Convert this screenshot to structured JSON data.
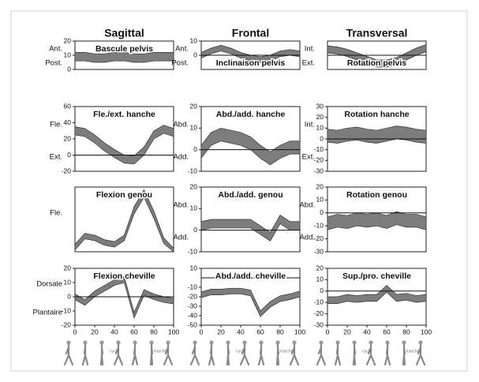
{
  "columns": [
    "Sagittal",
    "Frontal",
    "Transversal"
  ],
  "gait_labels": [
    "cycle",
    "marche"
  ],
  "chart_data": [
    {
      "type": "band",
      "title": "Bascule pelvis",
      "y_labels": [
        "Ant.",
        "Post."
      ],
      "x": [
        0,
        10,
        20,
        30,
        40,
        50,
        60,
        70,
        80,
        90,
        100
      ],
      "xlim": [
        0,
        100
      ],
      "ylim": [
        0,
        20
      ],
      "yticks": [
        0,
        10,
        20
      ],
      "zero_line": false,
      "series": [
        {
          "color": "#666666",
          "values": [
            6,
            6,
            5,
            5,
            6,
            6,
            5,
            5,
            6,
            6,
            6
          ]
        },
        {
          "color": "#666666",
          "values": [
            12,
            12,
            11,
            11,
            12,
            12,
            11,
            11,
            12,
            12,
            12
          ]
        }
      ]
    },
    {
      "type": "band",
      "title": "Inclinaison pelvis",
      "y_labels": [
        "Ant.",
        "Post."
      ],
      "x": [
        0,
        10,
        20,
        30,
        40,
        50,
        60,
        70,
        80,
        90,
        100
      ],
      "xlim": [
        0,
        100
      ],
      "ylim": [
        -10,
        10
      ],
      "yticks": [
        0,
        10
      ],
      "zero_line": true,
      "series": [
        {
          "color": "#666666",
          "values": [
            -2,
            1,
            3,
            1,
            -2,
            -4,
            -5,
            -4,
            -1,
            0,
            -1
          ]
        },
        {
          "color": "#666666",
          "values": [
            2,
            5,
            7,
            5,
            2,
            0,
            -1,
            0,
            3,
            4,
            3
          ]
        }
      ]
    },
    {
      "type": "band",
      "title": "Rotation pelvis",
      "y_labels": [
        "Int.",
        "Ext."
      ],
      "x": [
        0,
        10,
        20,
        30,
        40,
        50,
        60,
        70,
        80,
        90,
        100
      ],
      "xlim": [
        0,
        100
      ],
      "ylim": [
        -12,
        12
      ],
      "yticks": [],
      "zero_line": true,
      "series": [
        {
          "color": "#666666",
          "values": [
            2,
            1,
            -1,
            -4,
            -7,
            -10,
            -10,
            -8,
            -4,
            0,
            3
          ]
        },
        {
          "color": "#666666",
          "values": [
            8,
            7,
            5,
            2,
            -1,
            -4,
            -4,
            -2,
            2,
            6,
            9
          ]
        }
      ]
    },
    {
      "type": "band",
      "title": "Fle./ext. hanche",
      "y_labels": [
        "Fle.",
        "Ext."
      ],
      "x": [
        0,
        10,
        20,
        30,
        40,
        50,
        60,
        70,
        80,
        90,
        100
      ],
      "xlim": [
        0,
        100
      ],
      "ylim": [
        -20,
        60
      ],
      "yticks": [
        -20,
        0,
        20,
        40,
        60
      ],
      "zero_line": true,
      "series": [
        {
          "color": "#666666",
          "values": [
            25,
            23,
            15,
            5,
            -3,
            -10,
            -11,
            0,
            20,
            27,
            23
          ]
        },
        {
          "color": "#666666",
          "values": [
            35,
            33,
            25,
            15,
            7,
            0,
            -1,
            10,
            30,
            37,
            33
          ]
        }
      ]
    },
    {
      "type": "band",
      "title": "Abd./add. hanche",
      "y_labels": [
        "Abd.",
        "Add."
      ],
      "x": [
        0,
        10,
        20,
        30,
        40,
        50,
        60,
        70,
        80,
        90,
        100
      ],
      "xlim": [
        0,
        100
      ],
      "ylim": [
        -10,
        20
      ],
      "yticks": [
        -10,
        0,
        10,
        20
      ],
      "zero_line": true,
      "series": [
        {
          "color": "#666666",
          "values": [
            -4,
            2,
            4,
            3,
            2,
            0,
            -4,
            -7,
            -4,
            -2,
            -2
          ]
        },
        {
          "color": "#666666",
          "values": [
            2,
            8,
            10,
            9,
            8,
            6,
            2,
            -1,
            2,
            4,
            4
          ]
        }
      ]
    },
    {
      "type": "band",
      "title": "Rotation hanche",
      "y_labels": [
        "Int.",
        "Ext."
      ],
      "x": [
        0,
        10,
        20,
        30,
        40,
        50,
        60,
        70,
        80,
        90,
        100
      ],
      "xlim": [
        0,
        100
      ],
      "ylim": [
        -30,
        30
      ],
      "yticks": [
        -30,
        -20,
        -10,
        0,
        10,
        20,
        30
      ],
      "zero_line": true,
      "series": [
        {
          "color": "#666666",
          "values": [
            -3,
            -4,
            -2,
            -1,
            -3,
            -4,
            -2,
            0,
            -1,
            -3,
            -4
          ]
        },
        {
          "color": "#666666",
          "values": [
            9,
            8,
            10,
            11,
            9,
            8,
            10,
            12,
            11,
            9,
            8
          ]
        }
      ]
    },
    {
      "type": "band",
      "title": "Flexion genou",
      "y_labels": [
        "Fle."
      ],
      "x": [
        0,
        10,
        20,
        30,
        40,
        50,
        60,
        70,
        80,
        90,
        100
      ],
      "xlim": [
        0,
        100
      ],
      "ylim": [
        0,
        70
      ],
      "yticks": [],
      "zero_line": false,
      "series": [
        {
          "color": "#666666",
          "values": [
            2,
            14,
            12,
            7,
            5,
            12,
            41,
            59,
            36,
            9,
            0
          ]
        },
        {
          "color": "#666666",
          "values": [
            8,
            20,
            18,
            13,
            11,
            18,
            49,
            67,
            44,
            15,
            4
          ]
        }
      ]
    },
    {
      "type": "band",
      "title": "Abd./add. genou",
      "y_labels": [
        "Abd.",
        "Add."
      ],
      "x": [
        0,
        10,
        20,
        30,
        40,
        50,
        60,
        70,
        80,
        90,
        100
      ],
      "xlim": [
        0,
        100
      ],
      "ylim": [
        -10,
        20
      ],
      "yticks": [
        -10,
        0,
        10,
        20
      ],
      "zero_line": true,
      "series": [
        {
          "color": "#666666",
          "values": [
            0,
            1,
            1,
            1,
            1,
            1,
            -2,
            -5,
            3,
            0,
            0
          ]
        },
        {
          "color": "#666666",
          "values": [
            4,
            5,
            5,
            5,
            5,
            5,
            2,
            -1,
            7,
            4,
            4
          ]
        }
      ]
    },
    {
      "type": "band",
      "title": "Rotation genou",
      "y_labels": [
        "Abd.",
        "Add."
      ],
      "x": [
        0,
        10,
        20,
        30,
        40,
        50,
        60,
        70,
        80,
        90,
        100
      ],
      "xlim": [
        0,
        100
      ],
      "ylim": [
        -30,
        20
      ],
      "yticks": [
        -30,
        -20,
        -10,
        0,
        10,
        20
      ],
      "zero_line": true,
      "series": [
        {
          "color": "#666666",
          "values": [
            -13,
            -11,
            -12,
            -10,
            -11,
            -10,
            -12,
            -9,
            -11,
            -11,
            -13
          ]
        },
        {
          "color": "#666666",
          "values": [
            -3,
            -1,
            -2,
            0,
            -1,
            0,
            -2,
            1,
            -1,
            -1,
            -3
          ]
        }
      ]
    },
    {
      "type": "band",
      "title": "Flexion cheville",
      "y_labels": [
        "Dorsale",
        "Plantaire"
      ],
      "x": [
        0,
        10,
        20,
        30,
        40,
        50,
        60,
        70,
        80,
        90,
        100
      ],
      "xlim": [
        0,
        100
      ],
      "ylim": [
        -20,
        20
      ],
      "yticks": [
        -20,
        -10,
        0,
        10,
        20
      ],
      "xticks": [
        0,
        20,
        40,
        60,
        80,
        100
      ],
      "zero_line": true,
      "series": [
        {
          "color": "#666666",
          "values": [
            -2,
            -6,
            0,
            4,
            8,
            10,
            -15,
            1,
            -2,
            -4,
            -5
          ]
        },
        {
          "color": "#666666",
          "values": [
            2,
            -2,
            4,
            8,
            12,
            14,
            -11,
            5,
            2,
            0,
            -1
          ]
        }
      ]
    },
    {
      "type": "band",
      "title": "Abd./add. cheville",
      "y_labels": [],
      "x": [
        0,
        10,
        20,
        30,
        40,
        50,
        60,
        70,
        80,
        90,
        100
      ],
      "xlim": [
        0,
        100
      ],
      "ylim": [
        -50,
        10
      ],
      "yticks": [
        -50,
        -40,
        -30,
        -20,
        -10,
        10
      ],
      "xticks": [
        0,
        20,
        40,
        60,
        80,
        100
      ],
      "zero_line": true,
      "series": [
        {
          "color": "#666666",
          "values": [
            -21,
            -18,
            -18,
            -17,
            -17,
            -19,
            -41,
            -31,
            -25,
            -23,
            -20
          ]
        },
        {
          "color": "#666666",
          "values": [
            -15,
            -12,
            -12,
            -11,
            -11,
            -13,
            -35,
            -25,
            -19,
            -17,
            -14
          ]
        }
      ]
    },
    {
      "type": "band",
      "title": "Sup./pro. cheville",
      "y_labels": [],
      "x": [
        0,
        10,
        20,
        30,
        40,
        50,
        60,
        70,
        80,
        90,
        100
      ],
      "xlim": [
        0,
        100
      ],
      "ylim": [
        -30,
        20
      ],
      "yticks": [
        -30,
        -20,
        -10,
        0,
        10,
        20
      ],
      "xticks": [
        0,
        20,
        40,
        60,
        80,
        100
      ],
      "zero_line": true,
      "series": [
        {
          "color": "#666666",
          "values": [
            -11,
            -11,
            -9,
            -10,
            -9,
            -9,
            -1,
            -9,
            -8,
            -10,
            -9
          ]
        },
        {
          "color": "#666666",
          "values": [
            -5,
            -5,
            -3,
            -4,
            -3,
            -3,
            5,
            -3,
            -2,
            -4,
            -3
          ]
        }
      ]
    }
  ]
}
